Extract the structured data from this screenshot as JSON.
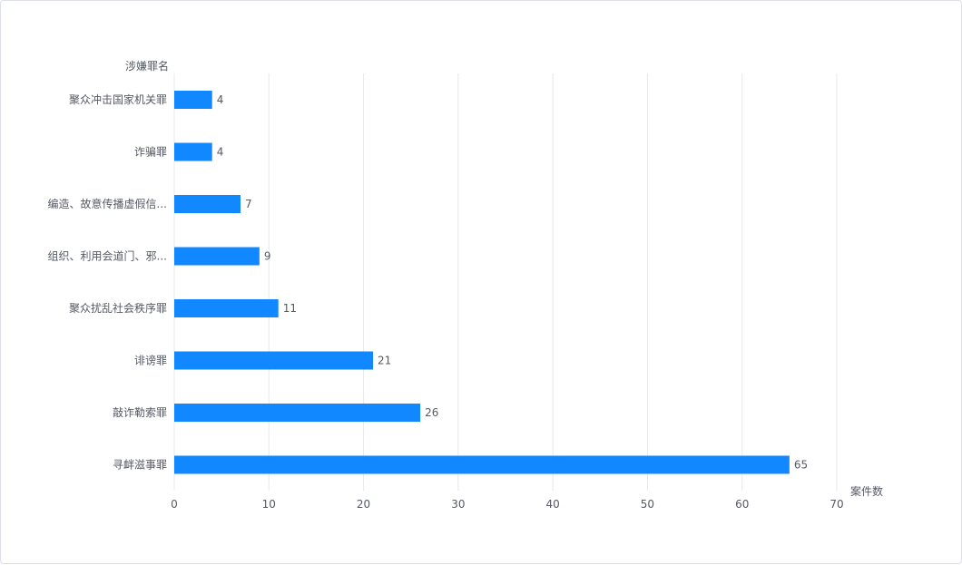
{
  "chart_data": {
    "type": "bar",
    "orientation": "horizontal",
    "ylabel": "涉嫌罪名",
    "xlabel": "案件数",
    "xlim": [
      0,
      70
    ],
    "xticks": [
      0,
      10,
      20,
      30,
      40,
      50,
      60,
      70
    ],
    "grid": true,
    "categories": [
      "聚众冲击国家机关罪",
      "诈骗罪",
      "编造、故意传播虚假信...",
      "组织、利用会道门、邪...",
      "聚众扰乱社会秩序罪",
      "诽谤罪",
      "敲诈勒索罪",
      "寻衅滋事罪"
    ],
    "values": [
      4,
      4,
      7,
      9,
      11,
      21,
      26,
      65
    ],
    "bar_color": "#1188ff",
    "grid_color": "#e6e8ec"
  }
}
